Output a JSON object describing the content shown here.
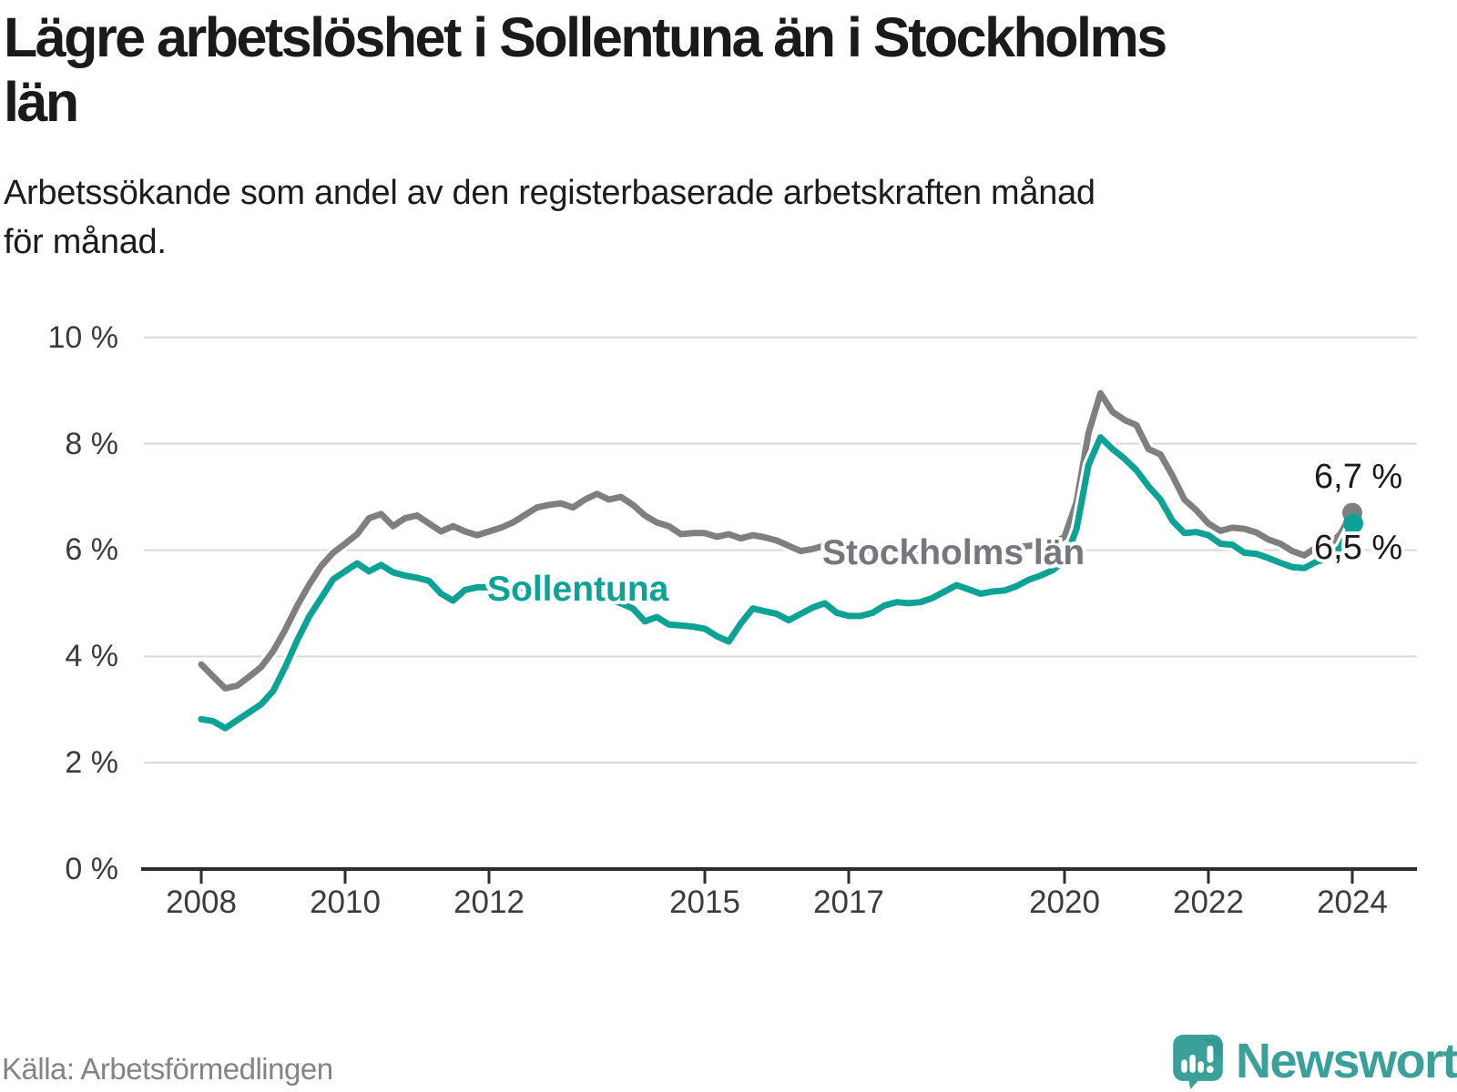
{
  "header": {
    "title": "Lägre arbetslöshet i Sollentuna än i Stockholms\nlän",
    "subtitle": "Arbetssökande som andel av den registerbaserade arbetskraften månad\nför månad."
  },
  "footer": {
    "source": "Källa: Arbetsförmedlingen"
  },
  "brand": {
    "name": "Newsworthy",
    "icon": "newsworthy-speech-bubble-chart-icon",
    "color": "#3ba09a"
  },
  "colors": {
    "sollentuna": "#0ca295",
    "stockholm": "#7f7f7f",
    "stockholm_label": "#76767e",
    "gridline": "#d9d9d9",
    "axis": "#2d2d2d",
    "tick_text": "#3c3c3c",
    "value_text": "#1a1a1a"
  },
  "chart_data": {
    "type": "line",
    "title": "Lägre arbetslöshet i Sollentuna än i Stockholms län",
    "xlabel": "",
    "ylabel": "Arbetssökande som andel av den registerbaserade arbetskraften",
    "unit": "%",
    "x_start_year": 2008,
    "points_per_year": 6,
    "x_range": [
      2008,
      2024.1
    ],
    "ylim": [
      0,
      10
    ],
    "grid": "horizontal",
    "legend_position": "inline-labels",
    "x_ticks": [
      {
        "label": "2008",
        "year": 2008
      },
      {
        "label": "2010",
        "year": 2010
      },
      {
        "label": "2012",
        "year": 2012
      },
      {
        "label": "2015",
        "year": 2015
      },
      {
        "label": "2017",
        "year": 2017
      },
      {
        "label": "2020",
        "year": 2020
      },
      {
        "label": "2022",
        "year": 2022
      },
      {
        "label": "2024",
        "year": 2024
      }
    ],
    "y_ticks": [
      {
        "label": "10 %",
        "value": 10
      },
      {
        "label": "8 %",
        "value": 8
      },
      {
        "label": "6 %",
        "value": 6
      },
      {
        "label": "4 %",
        "value": 4
      },
      {
        "label": "2 %",
        "value": 2
      },
      {
        "label": "0 %",
        "value": 0
      }
    ],
    "series": [
      {
        "name": "Stockholms län",
        "color": "#7f7f7f",
        "end_label": "6,7 %",
        "end_value": 6.7,
        "values": [
          3.85,
          3.62,
          3.4,
          3.45,
          3.62,
          3.8,
          4.1,
          4.5,
          4.95,
          5.35,
          5.7,
          5.95,
          6.12,
          6.3,
          6.6,
          6.68,
          6.45,
          6.6,
          6.65,
          6.5,
          6.35,
          6.45,
          6.35,
          6.28,
          6.35,
          6.42,
          6.52,
          6.66,
          6.8,
          6.85,
          6.88,
          6.8,
          6.95,
          7.06,
          6.95,
          7.0,
          6.85,
          6.65,
          6.52,
          6.45,
          6.3,
          6.32,
          6.32,
          6.25,
          6.3,
          6.22,
          6.28,
          6.24,
          6.18,
          6.08,
          5.98,
          6.02,
          6.08,
          6.05,
          6.05,
          6.0,
          5.98,
          6.0,
          6.02,
          6.0,
          6.0,
          5.98,
          6.0,
          6.02,
          6.0,
          6.02,
          6.02,
          6.0,
          6.05,
          6.08,
          6.1,
          6.12,
          6.25,
          6.9,
          8.2,
          8.95,
          8.6,
          8.45,
          8.35,
          7.9,
          7.8,
          7.4,
          6.95,
          6.75,
          6.5,
          6.36,
          6.42,
          6.4,
          6.33,
          6.2,
          6.12,
          5.98,
          5.9,
          6.05,
          6.08,
          6.3,
          6.7
        ]
      },
      {
        "name": "Sollentuna",
        "color": "#0ca295",
        "end_label": "6,5 %",
        "end_value": 6.5,
        "values": [
          2.82,
          2.78,
          2.65,
          2.8,
          2.95,
          3.1,
          3.35,
          3.8,
          4.3,
          4.75,
          5.1,
          5.45,
          5.6,
          5.75,
          5.6,
          5.72,
          5.58,
          5.52,
          5.48,
          5.42,
          5.18,
          5.05,
          5.25,
          5.3,
          5.3,
          5.35,
          5.3,
          5.28,
          5.32,
          5.26,
          5.25,
          5.2,
          5.16,
          5.12,
          5.06,
          5.0,
          4.9,
          4.66,
          4.74,
          4.6,
          4.58,
          4.56,
          4.52,
          4.38,
          4.28,
          4.62,
          4.9,
          4.85,
          4.8,
          4.68,
          4.8,
          4.92,
          5.0,
          4.82,
          4.76,
          4.76,
          4.82,
          4.96,
          5.02,
          5.0,
          5.02,
          5.1,
          5.22,
          5.34,
          5.26,
          5.18,
          5.22,
          5.24,
          5.32,
          5.44,
          5.52,
          5.62,
          5.8,
          6.4,
          7.6,
          8.12,
          7.9,
          7.72,
          7.5,
          7.2,
          6.95,
          6.55,
          6.32,
          6.34,
          6.28,
          6.12,
          6.1,
          5.95,
          5.93,
          5.85,
          5.76,
          5.68,
          5.66,
          5.78,
          5.84,
          6.05,
          6.5
        ]
      }
    ]
  }
}
